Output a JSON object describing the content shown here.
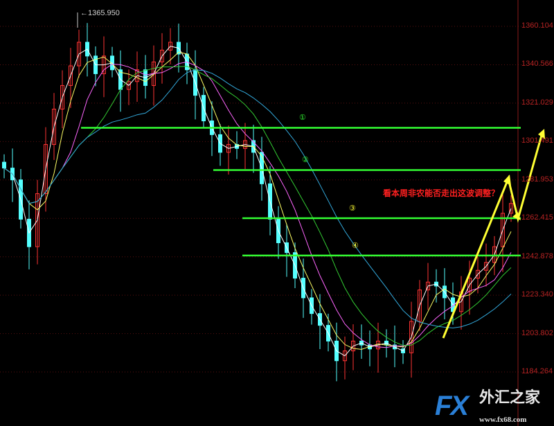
{
  "chart_data": {
    "type": "candlestick",
    "y_ticks": [
      "1360.104",
      "1340.566",
      "1321.029",
      "1301.491",
      "1281.953",
      "1262.415",
      "1242.878",
      "1223.340",
      "1203.802",
      "1184.264"
    ],
    "ylim": [
      1175,
      1372
    ],
    "grid": true,
    "max_label": "1365.950",
    "closes": [
      1288,
      1282,
      1262,
      1248,
      1275,
      1300,
      1318,
      1330,
      1340,
      1352,
      1345,
      1336,
      1345,
      1338,
      1328,
      1332,
      1338,
      1330,
      1342,
      1348,
      1352,
      1346,
      1338,
      1325,
      1312,
      1305,
      1296,
      1300,
      1298,
      1302,
      1296,
      1280,
      1262,
      1250,
      1245,
      1232,
      1222,
      1214,
      1208,
      1200,
      1190,
      1195,
      1200,
      1198,
      1196,
      1200,
      1198,
      1196,
      1194,
      1210,
      1226,
      1230,
      1228,
      1222,
      1215,
      1225,
      1232,
      1236,
      1240,
      1248,
      1265,
      1270
    ],
    "moving_averages": [
      {
        "period": 2,
        "color": "#ffffff"
      },
      {
        "period": 4,
        "color": "#ffff66"
      },
      {
        "period": 7,
        "color": "#ff66ff"
      },
      {
        "period": 11,
        "color": "#33cc33"
      },
      {
        "period": 18,
        "color": "#33aadd"
      }
    ],
    "levels": [
      {
        "label": "①",
        "price": 1308.5,
        "label_color": "#33ff33"
      },
      {
        "label": "②",
        "price": 1287,
        "label_color": "#33ff33"
      },
      {
        "label": "③",
        "price": 1262.5,
        "label_color": "#ffff33"
      },
      {
        "label": "④",
        "price": 1243.5,
        "label_color": "#ffff33"
      }
    ],
    "annotation": "看本周非农能否走出这波调整？",
    "up_color": "#ff3333",
    "down_color": "#55ffff",
    "level_color": "#33ff33",
    "arrow_color": "#ffff33"
  },
  "watermark": {
    "brand": "FX",
    "name": "外汇之家",
    "url": "www.fx68.com"
  }
}
